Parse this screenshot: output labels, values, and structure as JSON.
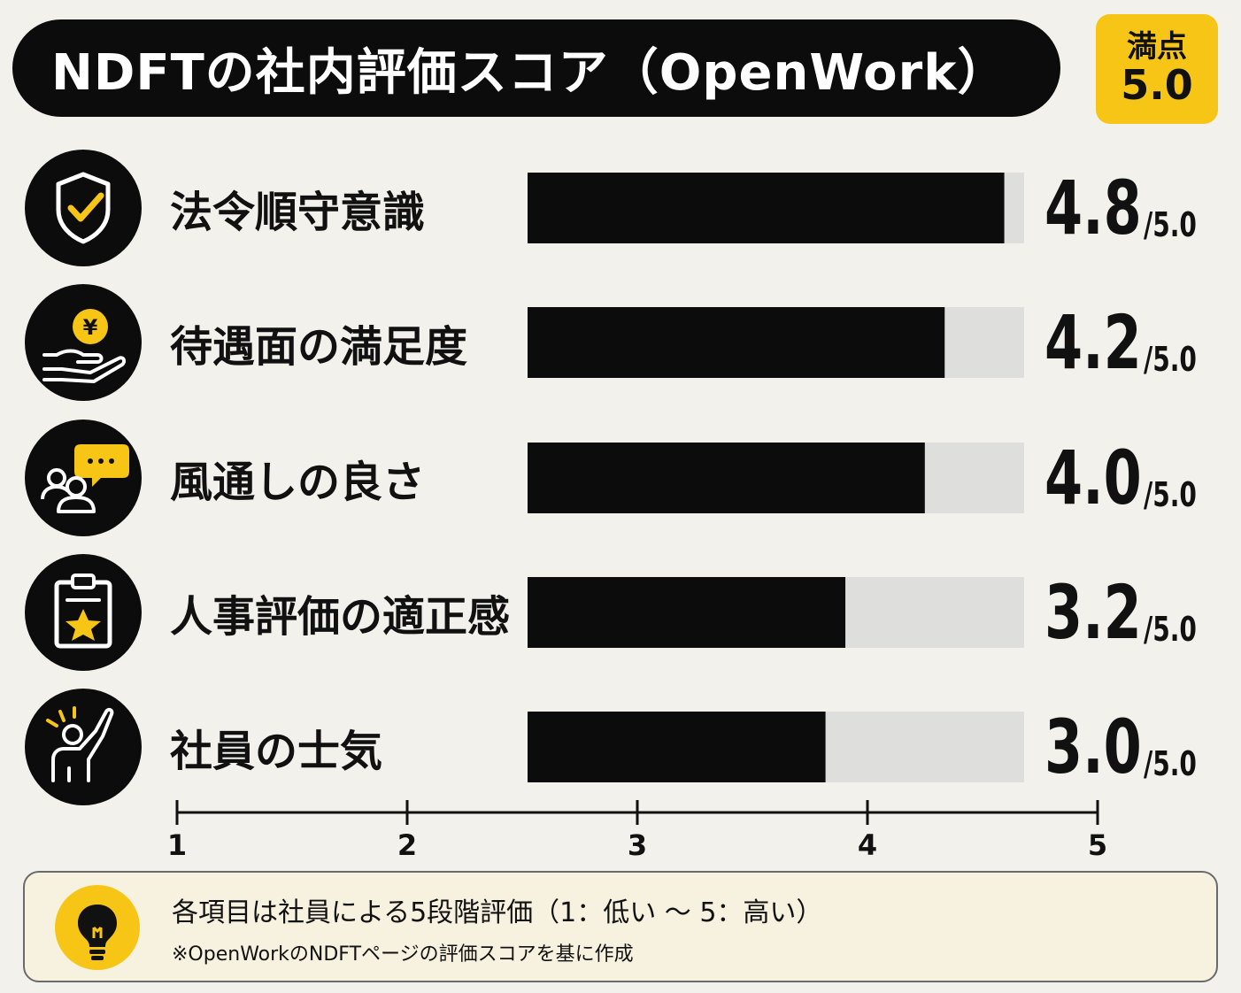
{
  "header": {
    "title": "NDFTの社内評価スコア（OpenWork）",
    "max_label": "満点",
    "max_value": "5.0"
  },
  "chart_data": {
    "type": "bar",
    "orientation": "horizontal",
    "categories": [
      "法令順守意識",
      "待遇面の満足度",
      "風通しの良さ",
      "人事評価の適正感",
      "社員の士気"
    ],
    "values": [
      4.8,
      4.2,
      4.0,
      3.2,
      3.0
    ],
    "value_labels": [
      "4.8",
      "4.2",
      "4.0",
      "3.2",
      "3.0"
    ],
    "suffix": "/5.0",
    "xlim": [
      1,
      5
    ],
    "xticks": [
      "1",
      "2",
      "3",
      "4",
      "5"
    ],
    "icons": [
      "shield-check-icon",
      "yen-hand-icon",
      "people-chat-icon",
      "clipboard-star-icon",
      "cheering-person-icon"
    ],
    "colors": {
      "bar": "#0c0c0c",
      "track": "#dededd",
      "accent": "#f6c515"
    }
  },
  "note": {
    "line1": "各項目は社員による5段階評価（1：低い 〜 5：高い）",
    "line2": "※OpenWorkのNDFTページの評価スコアを基に作成",
    "icon": "lightbulb-icon"
  }
}
